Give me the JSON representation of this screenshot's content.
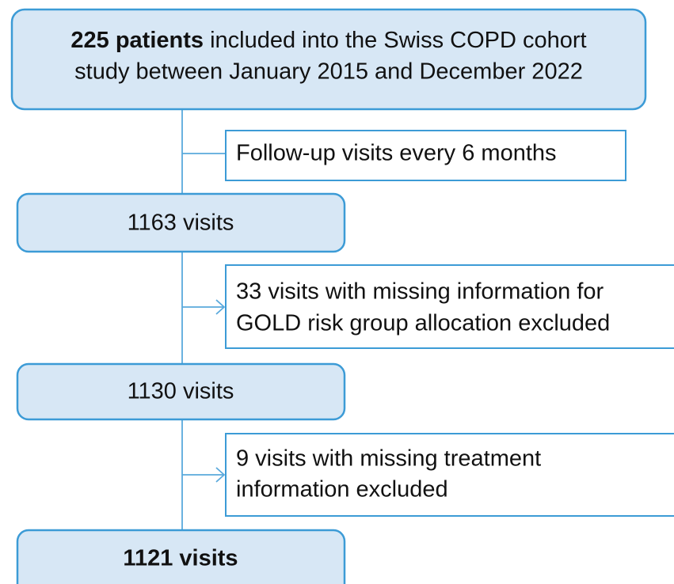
{
  "nodes": [
    {
      "bold": "225 patients",
      "lines": [
        " included into the Swiss COPD cohort",
        "study between January 2015 and December 2022"
      ]
    },
    {
      "lines": [
        "Follow-up visits every 6 months"
      ]
    },
    {
      "lines": [
        "1163 visits"
      ]
    },
    {
      "lines": [
        "33 visits with missing information for",
        "GOLD risk group allocation excluded"
      ]
    },
    {
      "lines": [
        "1130 visits"
      ]
    },
    {
      "lines": [
        "9 visits with missing treatment",
        "information excluded"
      ]
    },
    {
      "lines": [
        "1121 visits"
      ]
    }
  ]
}
